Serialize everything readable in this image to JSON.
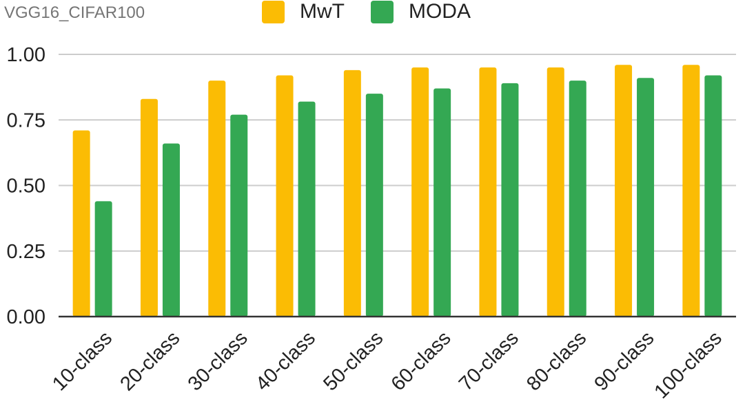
{
  "chart_data": {
    "type": "bar",
    "title": "VGG16_CIFAR100",
    "xlabel": "",
    "ylabel": "",
    "categories": [
      "10-class",
      "20-class",
      "30-class",
      "40-class",
      "50-class",
      "60-class",
      "70-class",
      "80-class",
      "90-class",
      "100-class"
    ],
    "series": [
      {
        "name": "MwT",
        "color": "#FBBC04",
        "values": [
          0.71,
          0.83,
          0.9,
          0.92,
          0.94,
          0.95,
          0.95,
          0.95,
          0.96,
          0.96
        ]
      },
      {
        "name": "MODA",
        "color": "#34A853",
        "values": [
          0.44,
          0.66,
          0.77,
          0.82,
          0.85,
          0.87,
          0.89,
          0.9,
          0.91,
          0.92
        ]
      }
    ],
    "ylim": [
      0,
      1
    ],
    "yticks": [
      "0.00",
      "0.25",
      "0.50",
      "0.75",
      "1.00"
    ],
    "grid": true,
    "legend_position": "top-center"
  }
}
